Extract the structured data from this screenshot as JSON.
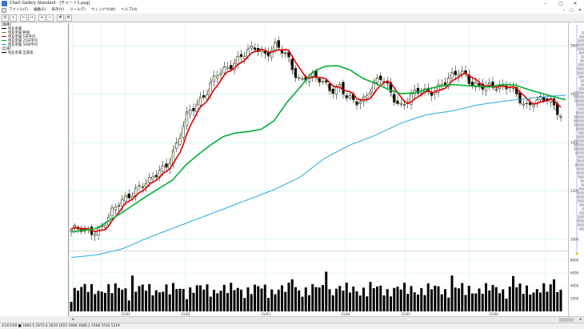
{
  "window": {
    "title": "Chart Gallery Standard - [チャート1.pag]",
    "controls": {
      "minimize": "–",
      "maximize": "▢",
      "close": "✕"
    }
  },
  "menu": {
    "items": [
      "ファイル(F)",
      "編集(E)",
      "表示(V)",
      "ツール(T)",
      "ウィンドウ(W)",
      "ヘルプ(H)"
    ],
    "mdi_controls": [
      "–",
      "▢",
      "✕"
    ]
  },
  "toolbar": {
    "buttons": [
      {
        "icon": "candle-chart-icon",
        "glyph": "⇅"
      },
      {
        "icon": "line-chart-icon",
        "glyph": "∿"
      },
      {
        "icon": "arrow-left-icon",
        "glyph": "←"
      },
      {
        "icon": "arrow-right-icon",
        "glyph": "→"
      },
      {
        "icon": "zoom-in-icon",
        "glyph": "+"
      },
      {
        "icon": "zoom-out-icon",
        "glyph": "−"
      },
      {
        "icon": "grid-icon",
        "glyph": "#"
      },
      {
        "icon": "settings-icon",
        "glyph": "⚙"
      }
    ]
  },
  "legend": {
    "groups": [
      {
        "header": "[価格]",
        "items": [
          {
            "label": "住友金属",
            "color": "#000000"
          },
          {
            "label": "住友金属 終値",
            "color": "#8b7d2a"
          },
          {
            "label": "住友金属 5日平均",
            "color": "#e00000"
          },
          {
            "label": "住友金属 25日平均",
            "color": "#00b030"
          },
          {
            "label": "住友金属 50日平均",
            "color": "#2aa7e0"
          }
        ]
      },
      {
        "header": "[出来]",
        "items": [
          {
            "label": "住友金属 出来高",
            "color": "#000000"
          }
        ]
      }
    ]
  },
  "status": {
    "text": "21/07/09  ■  1660.5  1672.0  1629  1655  1669  1686.2  1508  1516  5319"
  },
  "chart_data": [
    {
      "type": "candlestick",
      "series": [
        {
          "name": "住友金属",
          "role": "ohlc",
          "color": "#000000"
        },
        {
          "name": "住友金属 終値",
          "role": "close",
          "color": "#8b7d2a"
        },
        {
          "name": "住友金属 5日平均",
          "role": "ma5",
          "color": "#e00000"
        },
        {
          "name": "住友金属 25日平均",
          "role": "ma25",
          "color": "#00b030"
        },
        {
          "name": "住友金属 50日平均",
          "role": "ma50",
          "color": "#2aa7e0"
        }
      ],
      "x_ticks": [
        "21/01",
        "21/02",
        "21/03",
        "21/04",
        "21/05",
        "21/06"
      ],
      "y_ticks": [
        1000,
        1200,
        1400,
        1600,
        1800
      ],
      "ylim": [
        960,
        1880
      ],
      "grid": true,
      "close_anchors": [
        [
          0,
          1040
        ],
        [
          5,
          1035
        ],
        [
          10,
          1032
        ],
        [
          15,
          1048
        ],
        [
          20,
          1095
        ],
        [
          25,
          1150
        ],
        [
          30,
          1190
        ],
        [
          35,
          1215
        ],
        [
          40,
          1230
        ],
        [
          45,
          1285
        ],
        [
          50,
          1320
        ],
        [
          55,
          1395
        ],
        [
          60,
          1520
        ],
        [
          65,
          1570
        ],
        [
          70,
          1610
        ],
        [
          75,
          1675
        ],
        [
          80,
          1710
        ],
        [
          85,
          1745
        ],
        [
          90,
          1765
        ],
        [
          95,
          1790
        ],
        [
          100,
          1770
        ],
        [
          105,
          1800
        ],
        [
          110,
          1760
        ],
        [
          112,
          1735
        ],
        [
          115,
          1690
        ],
        [
          118,
          1660
        ],
        [
          122,
          1680
        ],
        [
          126,
          1660
        ],
        [
          130,
          1645
        ],
        [
          134,
          1620
        ],
        [
          138,
          1640
        ],
        [
          142,
          1580
        ],
        [
          146,
          1560
        ],
        [
          150,
          1575
        ],
        [
          155,
          1645
        ],
        [
          160,
          1665
        ],
        [
          165,
          1590
        ],
        [
          170,
          1555
        ],
        [
          175,
          1595
        ],
        [
          180,
          1605
        ],
        [
          185,
          1610
        ],
        [
          190,
          1640
        ],
        [
          195,
          1660
        ],
        [
          200,
          1690
        ],
        [
          203,
          1685
        ],
        [
          206,
          1650
        ],
        [
          210,
          1630
        ],
        [
          214,
          1620
        ],
        [
          218,
          1630
        ],
        [
          222,
          1640
        ],
        [
          226,
          1640
        ],
        [
          230,
          1575
        ],
        [
          234,
          1540
        ],
        [
          238,
          1575
        ],
        [
          242,
          1590
        ],
        [
          246,
          1575
        ],
        [
          249,
          1530
        ],
        [
          252,
          1505
        ]
      ],
      "ma25_anchors": [
        [
          0,
          1030
        ],
        [
          20,
          1045
        ],
        [
          40,
          1110
        ],
        [
          60,
          1180
        ],
        [
          80,
          1245
        ],
        [
          90,
          1305
        ],
        [
          100,
          1350
        ],
        [
          110,
          1390
        ],
        [
          120,
          1425
        ],
        [
          130,
          1440
        ],
        [
          140,
          1445
        ],
        [
          150,
          1455
        ],
        [
          160,
          1490
        ],
        [
          170,
          1565
        ],
        [
          180,
          1625
        ],
        [
          190,
          1690
        ],
        [
          200,
          1715
        ],
        [
          210,
          1718
        ],
        [
          220,
          1700
        ],
        [
          230,
          1665
        ],
        [
          240,
          1645
        ],
        [
          250,
          1620
        ],
        [
          260,
          1602
        ],
        [
          270,
          1605
        ],
        [
          280,
          1620
        ],
        [
          290,
          1632
        ],
        [
          300,
          1640
        ],
        [
          310,
          1636
        ],
        [
          320,
          1632
        ],
        [
          330,
          1630
        ],
        [
          340,
          1640
        ],
        [
          350,
          1638
        ],
        [
          360,
          1620
        ],
        [
          370,
          1605
        ],
        [
          380,
          1590
        ],
        [
          390,
          1577
        ]
      ],
      "ma50_anchors": [
        [
          0,
          925
        ],
        [
          20,
          935
        ],
        [
          40,
          960
        ],
        [
          60,
          1005
        ],
        [
          80,
          1045
        ],
        [
          100,
          1085
        ],
        [
          120,
          1125
        ],
        [
          140,
          1165
        ],
        [
          160,
          1205
        ],
        [
          180,
          1255
        ],
        [
          200,
          1335
        ],
        [
          220,
          1390
        ],
        [
          240,
          1430
        ],
        [
          260,
          1480
        ],
        [
          280,
          1515
        ],
        [
          300,
          1530
        ],
        [
          320,
          1555
        ],
        [
          340,
          1570
        ],
        [
          360,
          1582
        ],
        [
          380,
          1592
        ],
        [
          390,
          1595
        ]
      ]
    },
    {
      "type": "bar",
      "series": [
        {
          "name": "住友金属 出来高",
          "color": "#000000"
        }
      ],
      "y_ticks": [
        2000,
        4000,
        6000,
        8000
      ],
      "ylim": [
        0,
        9000
      ],
      "bar_count": 145,
      "spikes": [
        {
          "index": 18,
          "value": 5600
        },
        {
          "index": 65,
          "value": 5000
        },
        {
          "index": 75,
          "value": 6200
        },
        {
          "index": 88,
          "value": 4600
        },
        {
          "index": 112,
          "value": 5600
        },
        {
          "index": 130,
          "value": 5500
        },
        {
          "index": 142,
          "value": 5000
        }
      ]
    }
  ]
}
